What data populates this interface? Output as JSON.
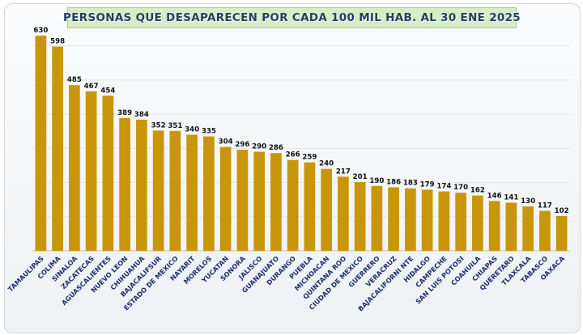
{
  "chart_data": {
    "type": "bar",
    "title": "PERSONAS QUE DESAPARECEN POR CADA 100 MIL HAB. AL 30 ENE 2025",
    "xlabel": "",
    "ylabel": "",
    "ylim": [
      0,
      630
    ],
    "grid": true,
    "bar_color": "#c9950b",
    "title_bg": "#d7ecc8",
    "categories": [
      "TAMAULIPAS",
      "COLIMA",
      "SINALOA",
      "ZACATECAS",
      "AGUASCALIENTES",
      "NUEVO LEON",
      "CHIHUAHUA",
      "BAJACALIFSUR",
      "ESTADO DE MEXICO",
      "NAYARIT",
      "MORELOS",
      "YUCATAN",
      "SONORA",
      "JALISCO",
      "GUANAJUATO",
      "DURANGO",
      "PUEBLA",
      "MICHOACAN",
      "QUINTANA ROO",
      "CIUDAD DE MEXICO",
      "GUERRERO",
      "VERACRUZ",
      "BAJACALIFORNI NTE",
      "HIDALGO",
      "CAMPECHE",
      "SAN LUIS POTOSI",
      "COAHUILA",
      "CHIAPAS",
      "QUERETARO",
      "TLAXCALA",
      "TABASCO",
      "OAXACA"
    ],
    "values": [
      630,
      598,
      485,
      467,
      454,
      389,
      384,
      352,
      351,
      340,
      335,
      304,
      296,
      290,
      286,
      266,
      259,
      240,
      217,
      201,
      190,
      186,
      183,
      179,
      174,
      170,
      162,
      146,
      141,
      130,
      117,
      102
    ]
  }
}
